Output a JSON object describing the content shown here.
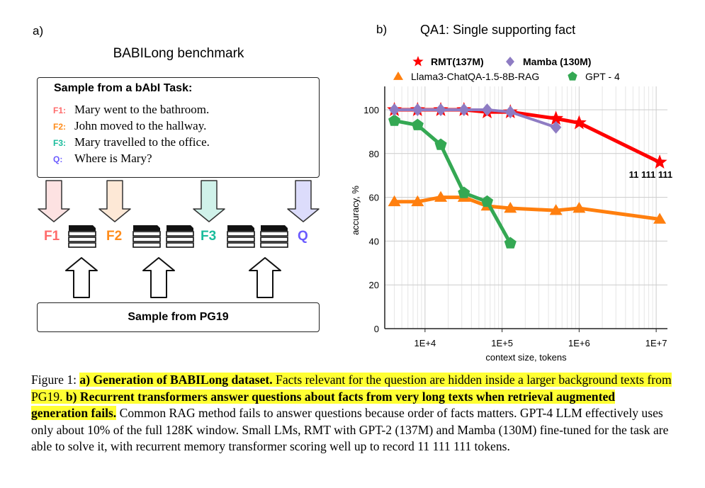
{
  "panel_a": {
    "label": "a)",
    "title": "BABILong benchmark",
    "task_box": {
      "heading": "Sample from a bAbI Task:",
      "facts": [
        {
          "tag": "F1:",
          "text": "Mary went to the bathroom.",
          "color": "#ff6b6b"
        },
        {
          "tag": "F2:",
          "text": "John moved to the hallway.",
          "color": "#ff8c1a"
        },
        {
          "tag": "F3:",
          "text": "Mary travelled to the office.",
          "color": "#1abc9c"
        },
        {
          "tag": "Q:",
          "text": "Where is Mary?",
          "color": "#6b5bff"
        }
      ]
    },
    "sequence_labels": [
      {
        "text": "F1",
        "color": "#ff6b6b"
      },
      {
        "text": "F2",
        "color": "#ff8c1a"
      },
      {
        "text": "F3",
        "color": "#1abc9c"
      },
      {
        "text": "Q",
        "color": "#6b5bff"
      }
    ],
    "bottom_box": "Sample from PG19"
  },
  "panel_b": {
    "label": "b)",
    "title": "QA1: Single supporting fact"
  },
  "chart_data": {
    "type": "line",
    "title": "QA1: Single supporting fact",
    "xlabel": "context size, tokens",
    "ylabel": "accuracy, %",
    "xscale": "log",
    "xlim": [
      3000,
      14000000
    ],
    "ylim": [
      0,
      110
    ],
    "yticks": [
      0,
      20,
      40,
      60,
      80,
      100
    ],
    "xticks": [
      {
        "v": 10000,
        "label": "1E+4"
      },
      {
        "v": 100000,
        "label": "1E+5"
      },
      {
        "v": 1000000,
        "label": "1E+6"
      },
      {
        "v": 10000000,
        "label": "1E+7"
      }
    ],
    "grid": true,
    "legend_position": "top",
    "annotation": {
      "text": "11 111 111",
      "x": 11111111,
      "y": 76
    },
    "series": [
      {
        "name": "RMT(137M)",
        "color": "#ff0000",
        "marker": "star",
        "x": [
          4000,
          8000,
          16000,
          32000,
          64000,
          128000,
          500000,
          1000000,
          11111111
        ],
        "y": [
          100,
          100,
          100,
          100,
          99,
          99,
          96,
          94,
          76
        ]
      },
      {
        "name": "Mamba (130M)",
        "color": "#8e7cc3",
        "marker": "diamond",
        "x": [
          4000,
          8000,
          16000,
          32000,
          64000,
          128000,
          500000
        ],
        "y": [
          100,
          100,
          100,
          100,
          100,
          99,
          92
        ]
      },
      {
        "name": "Llama3-ChatQA-1.5-8B-RAG",
        "color": "#ff7f0e",
        "marker": "triangle",
        "x": [
          4000,
          8000,
          16000,
          32000,
          64000,
          128000,
          500000,
          1000000,
          11111111
        ],
        "y": [
          58,
          58,
          60,
          60,
          56,
          55,
          54,
          55,
          50
        ]
      },
      {
        "name": "GPT - 4",
        "color": "#34a853",
        "marker": "pentagon",
        "x": [
          4000,
          8000,
          16000,
          32000,
          64000,
          128000
        ],
        "y": [
          95,
          93,
          84,
          62,
          58,
          39
        ]
      }
    ]
  },
  "caption": {
    "prefix": "Figure 1: ",
    "a_bold": "a) Generation of BABILong dataset.",
    "a_text": " Facts relevant for the question are hidden inside a larger background texts from PG19.",
    "b_bold": " b) Recurrent transformers answer questions about facts from very long texts when retrieval augmented generation fails.",
    "rest": " Common RAG method fails to answer questions because order of facts matters. GPT-4 LLM effectively uses only about 10% of the full 128K window. Small LMs, RMT with GPT-2 (137M) and Mamba (130M) fine-tuned for the task are able to solve it, with recurrent memory transformer scoring well up to record 11 111 111 tokens."
  }
}
